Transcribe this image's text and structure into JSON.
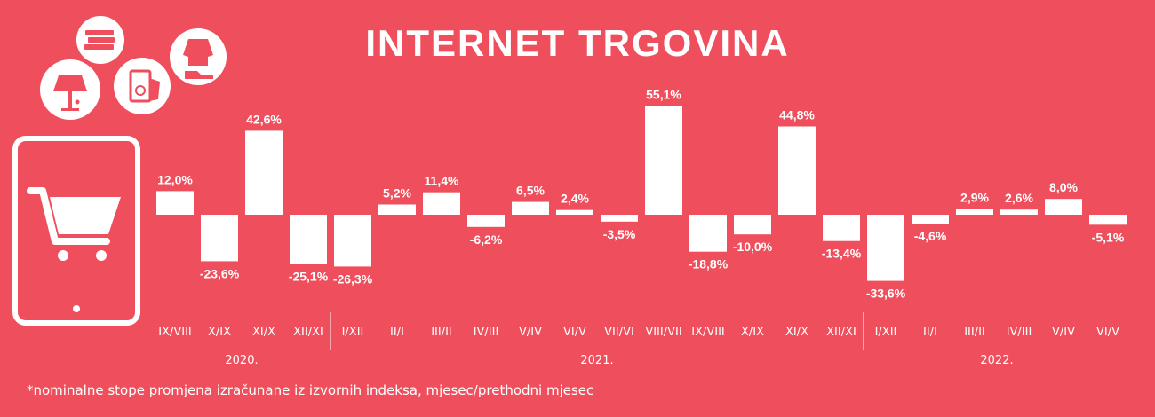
{
  "title": "INTERNET TRGOVINA",
  "footnote": "*nominalne stope promjena izračunane iz izvornih indeksa, mjesec/prethodni mjesec",
  "icons": [
    "lamp-icon",
    "books-icon",
    "washing-machine-icon",
    "clothing-icon",
    "tablet-icon",
    "shopping-cart-icon"
  ],
  "colors": {
    "background": "#ef4f5c",
    "bars": "#ffffff",
    "text": "#ffffff"
  },
  "chart_data": {
    "type": "bar",
    "categories": [
      "IX/VIII",
      "X/IX",
      "XI/X",
      "XII/XI",
      "I/XII",
      "II/I",
      "III/II",
      "IV/III",
      "V/IV",
      "VI/V",
      "VII/VI",
      "VIII/VII",
      "IX/VIII",
      "X/IX",
      "XI/X",
      "XII/XI",
      "I/XII",
      "II/I",
      "III/II",
      "IV/III",
      "V/IV",
      "VI/V"
    ],
    "values": [
      12.0,
      -23.6,
      42.6,
      -25.1,
      -26.3,
      5.2,
      11.4,
      -6.2,
      6.5,
      2.4,
      -3.5,
      55.1,
      -18.8,
      -10.0,
      44.8,
      -13.4,
      -33.6,
      -4.6,
      2.9,
      2.6,
      8.0,
      -5.1
    ],
    "value_labels": [
      "12,0%",
      "-23,6%",
      "42,6%",
      "-25,1%",
      "-26,3%",
      "5,2%",
      "11,4%",
      "-6,2%",
      "6,5%",
      "2,4%",
      "-3,5%",
      "55,1%",
      "-18,8%",
      "-10,0%",
      "44,8%",
      "-13,4%",
      "-33,6%",
      "-4,6%",
      "2,9%",
      "2,6%",
      "8,0%",
      "-5,1%"
    ],
    "year_groups": [
      {
        "label": "2020.",
        "start": 0,
        "end": 3
      },
      {
        "label": "2021.",
        "start": 4,
        "end": 15
      },
      {
        "label": "2022.",
        "start": 16,
        "end": 21
      }
    ],
    "unit": "%",
    "grid": false,
    "legend": "none"
  }
}
